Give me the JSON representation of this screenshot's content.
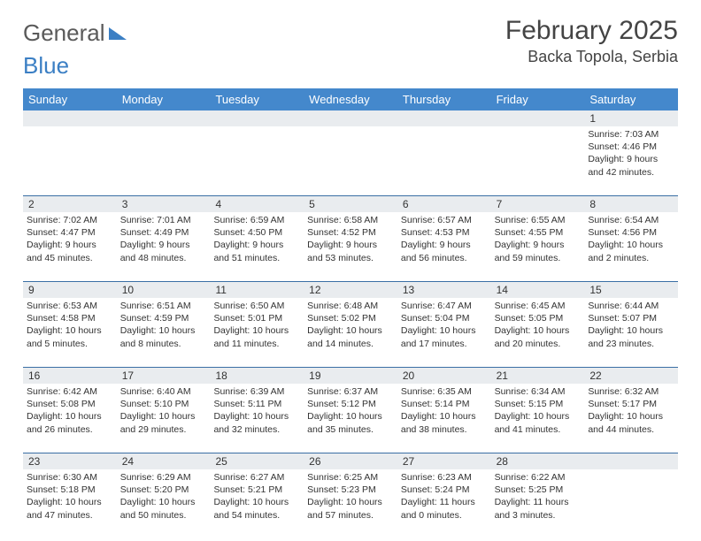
{
  "brand": {
    "word1": "General",
    "word2": "Blue"
  },
  "title": "February 2025",
  "location": "Backa Topola, Serbia",
  "colors": {
    "header_bg": "#4488cc",
    "header_text": "#ffffff",
    "daynum_bg": "#e9ecef",
    "week_border": "#3a6fa5",
    "text": "#333333",
    "brand_gray": "#5a5a5a",
    "brand_blue": "#3b7fc4"
  },
  "day_names": [
    "Sunday",
    "Monday",
    "Tuesday",
    "Wednesday",
    "Thursday",
    "Friday",
    "Saturday"
  ],
  "weeks": [
    [
      {
        "n": "",
        "sr": "",
        "ss": "",
        "dl": ""
      },
      {
        "n": "",
        "sr": "",
        "ss": "",
        "dl": ""
      },
      {
        "n": "",
        "sr": "",
        "ss": "",
        "dl": ""
      },
      {
        "n": "",
        "sr": "",
        "ss": "",
        "dl": ""
      },
      {
        "n": "",
        "sr": "",
        "ss": "",
        "dl": ""
      },
      {
        "n": "",
        "sr": "",
        "ss": "",
        "dl": ""
      },
      {
        "n": "1",
        "sr": "Sunrise: 7:03 AM",
        "ss": "Sunset: 4:46 PM",
        "dl": "Daylight: 9 hours and 42 minutes."
      }
    ],
    [
      {
        "n": "2",
        "sr": "Sunrise: 7:02 AM",
        "ss": "Sunset: 4:47 PM",
        "dl": "Daylight: 9 hours and 45 minutes."
      },
      {
        "n": "3",
        "sr": "Sunrise: 7:01 AM",
        "ss": "Sunset: 4:49 PM",
        "dl": "Daylight: 9 hours and 48 minutes."
      },
      {
        "n": "4",
        "sr": "Sunrise: 6:59 AM",
        "ss": "Sunset: 4:50 PM",
        "dl": "Daylight: 9 hours and 51 minutes."
      },
      {
        "n": "5",
        "sr": "Sunrise: 6:58 AM",
        "ss": "Sunset: 4:52 PM",
        "dl": "Daylight: 9 hours and 53 minutes."
      },
      {
        "n": "6",
        "sr": "Sunrise: 6:57 AM",
        "ss": "Sunset: 4:53 PM",
        "dl": "Daylight: 9 hours and 56 minutes."
      },
      {
        "n": "7",
        "sr": "Sunrise: 6:55 AM",
        "ss": "Sunset: 4:55 PM",
        "dl": "Daylight: 9 hours and 59 minutes."
      },
      {
        "n": "8",
        "sr": "Sunrise: 6:54 AM",
        "ss": "Sunset: 4:56 PM",
        "dl": "Daylight: 10 hours and 2 minutes."
      }
    ],
    [
      {
        "n": "9",
        "sr": "Sunrise: 6:53 AM",
        "ss": "Sunset: 4:58 PM",
        "dl": "Daylight: 10 hours and 5 minutes."
      },
      {
        "n": "10",
        "sr": "Sunrise: 6:51 AM",
        "ss": "Sunset: 4:59 PM",
        "dl": "Daylight: 10 hours and 8 minutes."
      },
      {
        "n": "11",
        "sr": "Sunrise: 6:50 AM",
        "ss": "Sunset: 5:01 PM",
        "dl": "Daylight: 10 hours and 11 minutes."
      },
      {
        "n": "12",
        "sr": "Sunrise: 6:48 AM",
        "ss": "Sunset: 5:02 PM",
        "dl": "Daylight: 10 hours and 14 minutes."
      },
      {
        "n": "13",
        "sr": "Sunrise: 6:47 AM",
        "ss": "Sunset: 5:04 PM",
        "dl": "Daylight: 10 hours and 17 minutes."
      },
      {
        "n": "14",
        "sr": "Sunrise: 6:45 AM",
        "ss": "Sunset: 5:05 PM",
        "dl": "Daylight: 10 hours and 20 minutes."
      },
      {
        "n": "15",
        "sr": "Sunrise: 6:44 AM",
        "ss": "Sunset: 5:07 PM",
        "dl": "Daylight: 10 hours and 23 minutes."
      }
    ],
    [
      {
        "n": "16",
        "sr": "Sunrise: 6:42 AM",
        "ss": "Sunset: 5:08 PM",
        "dl": "Daylight: 10 hours and 26 minutes."
      },
      {
        "n": "17",
        "sr": "Sunrise: 6:40 AM",
        "ss": "Sunset: 5:10 PM",
        "dl": "Daylight: 10 hours and 29 minutes."
      },
      {
        "n": "18",
        "sr": "Sunrise: 6:39 AM",
        "ss": "Sunset: 5:11 PM",
        "dl": "Daylight: 10 hours and 32 minutes."
      },
      {
        "n": "19",
        "sr": "Sunrise: 6:37 AM",
        "ss": "Sunset: 5:12 PM",
        "dl": "Daylight: 10 hours and 35 minutes."
      },
      {
        "n": "20",
        "sr": "Sunrise: 6:35 AM",
        "ss": "Sunset: 5:14 PM",
        "dl": "Daylight: 10 hours and 38 minutes."
      },
      {
        "n": "21",
        "sr": "Sunrise: 6:34 AM",
        "ss": "Sunset: 5:15 PM",
        "dl": "Daylight: 10 hours and 41 minutes."
      },
      {
        "n": "22",
        "sr": "Sunrise: 6:32 AM",
        "ss": "Sunset: 5:17 PM",
        "dl": "Daylight: 10 hours and 44 minutes."
      }
    ],
    [
      {
        "n": "23",
        "sr": "Sunrise: 6:30 AM",
        "ss": "Sunset: 5:18 PM",
        "dl": "Daylight: 10 hours and 47 minutes."
      },
      {
        "n": "24",
        "sr": "Sunrise: 6:29 AM",
        "ss": "Sunset: 5:20 PM",
        "dl": "Daylight: 10 hours and 50 minutes."
      },
      {
        "n": "25",
        "sr": "Sunrise: 6:27 AM",
        "ss": "Sunset: 5:21 PM",
        "dl": "Daylight: 10 hours and 54 minutes."
      },
      {
        "n": "26",
        "sr": "Sunrise: 6:25 AM",
        "ss": "Sunset: 5:23 PM",
        "dl": "Daylight: 10 hours and 57 minutes."
      },
      {
        "n": "27",
        "sr": "Sunrise: 6:23 AM",
        "ss": "Sunset: 5:24 PM",
        "dl": "Daylight: 11 hours and 0 minutes."
      },
      {
        "n": "28",
        "sr": "Sunrise: 6:22 AM",
        "ss": "Sunset: 5:25 PM",
        "dl": "Daylight: 11 hours and 3 minutes."
      },
      {
        "n": "",
        "sr": "",
        "ss": "",
        "dl": ""
      }
    ]
  ]
}
